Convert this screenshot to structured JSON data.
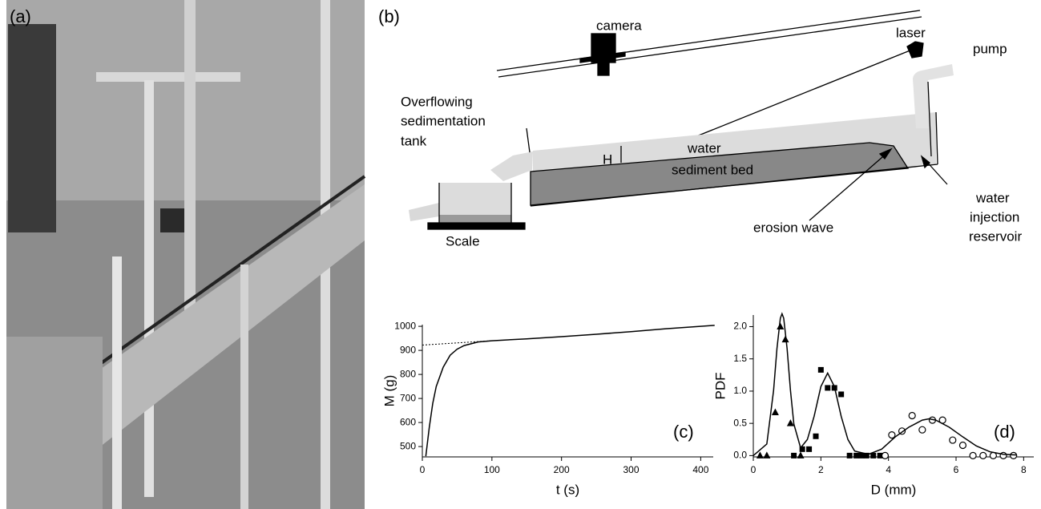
{
  "photo": {
    "label": "(a)"
  },
  "diagram": {
    "label": "(b)",
    "texts": [
      "camera",
      "laser",
      "pump",
      "Overflowing",
      "sedimentation",
      "tank",
      "H",
      "water",
      "sediment bed",
      "Scale",
      "erosion wave",
      "water",
      "injection",
      "reservoir"
    ]
  },
  "chart_data": [
    {
      "type": "line",
      "panel_label": "(c)",
      "x_label": "t (s)",
      "y_label": "M (g)",
      "xlim": [
        0,
        418
      ],
      "ylim": [
        457,
        1007
      ],
      "xticks": [
        0,
        100,
        200,
        300,
        400
      ],
      "yticks": [
        500,
        600,
        700,
        800,
        900,
        1000
      ],
      "series": [
        {
          "style": "line",
          "color": "#000000",
          "x": [
            5,
            10,
            15,
            20,
            30,
            40,
            50,
            60,
            80,
            100,
            150,
            200,
            250,
            300,
            350,
            420
          ],
          "values": [
            460,
            580,
            680,
            750,
            830,
            880,
            905,
            920,
            935,
            940,
            948,
            957,
            967,
            978,
            990,
            1004
          ]
        },
        {
          "style": "dashed",
          "color": "#000000",
          "x": [
            0,
            100
          ],
          "values": [
            922,
            940
          ]
        }
      ]
    },
    {
      "type": "scatter",
      "panel_label": "(d)",
      "x_label": "D (mm)",
      "y_label": "PDF",
      "xlim": [
        0,
        8.3
      ],
      "ylim": [
        -0.02,
        2.18
      ],
      "xticks": [
        0,
        2,
        4,
        6,
        8
      ],
      "yticks": [
        {
          "value": 0,
          "label": "0.0"
        },
        {
          "value": 0.5,
          "label": "0.5"
        },
        {
          "value": 1,
          "label": "1.0"
        },
        {
          "value": 1.5,
          "label": "1.5"
        },
        {
          "value": 2,
          "label": "2.0"
        }
      ],
      "series": [
        {
          "style": "triangle",
          "color": "#000000",
          "x": [
            0.2,
            0.4,
            0.65,
            0.8,
            0.95,
            1.1,
            1.4
          ],
          "values": [
            0,
            0,
            0.67,
            2.0,
            1.8,
            0.5,
            0
          ]
        },
        {
          "style": "square",
          "color": "#000000",
          "x": [
            1.2,
            1.45,
            1.65,
            1.85,
            2.0,
            2.2,
            2.4,
            2.6,
            2.85,
            3.05,
            3.2,
            3.35,
            3.55,
            3.75
          ],
          "values": [
            0,
            0.1,
            0.1,
            0.3,
            1.33,
            1.05,
            1.05,
            0.95,
            0,
            0,
            0,
            0,
            0,
            0
          ]
        },
        {
          "style": "circle",
          "color": "#000000",
          "x": [
            3.9,
            4.1,
            4.4,
            4.7,
            5.0,
            5.3,
            5.6,
            5.9,
            6.2,
            6.5,
            6.8,
            7.1,
            7.4,
            7.7
          ],
          "values": [
            0,
            0.32,
            0.38,
            0.62,
            0.4,
            0.55,
            0.55,
            0.24,
            0.16,
            0,
            0,
            0,
            0,
            0
          ]
        },
        {
          "style": "line",
          "color": "#000000",
          "x": [
            0,
            0.4,
            0.6,
            0.7,
            0.8,
            0.85,
            0.9,
            1.0,
            1.1,
            1.2,
            1.4,
            1.6,
            1.8,
            2.0,
            2.2,
            2.4,
            2.6,
            2.8,
            3.0,
            3.4,
            3.8,
            4.2,
            4.6,
            5.0,
            5.2,
            5.4,
            5.8,
            6.2,
            6.6,
            7.0,
            7.4,
            7.8
          ],
          "values": [
            0,
            0.18,
            1.01,
            1.66,
            2.13,
            2.2,
            2.13,
            1.66,
            1.01,
            0.49,
            0.12,
            0.25,
            0.61,
            1.07,
            1.28,
            1.07,
            0.61,
            0.25,
            0.07,
            0.02,
            0.1,
            0.29,
            0.44,
            0.55,
            0.57,
            0.55,
            0.44,
            0.29,
            0.15,
            0.06,
            0.02,
            0.01
          ]
        }
      ]
    }
  ]
}
